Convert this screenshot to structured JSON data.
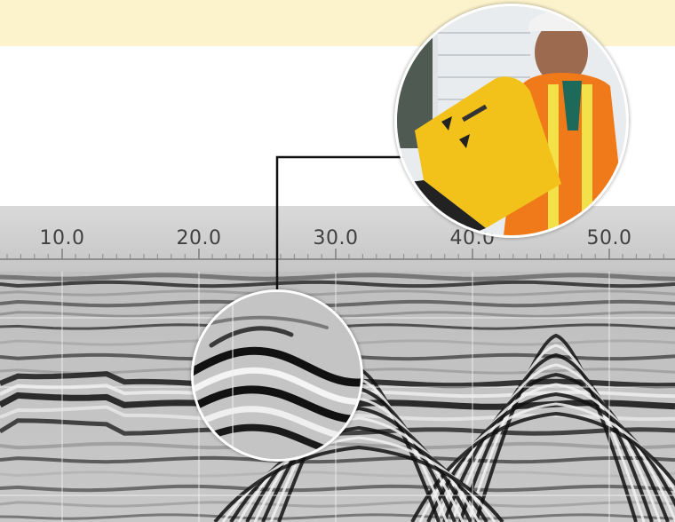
{
  "ruler": {
    "labels": [
      "10.0",
      "20.0",
      "30.0",
      "40.0",
      "50.0"
    ]
  },
  "icons": {
    "photo": "operator-with-yellow-gpr-unit-photo",
    "zoom": "magnified-radar-reflection"
  },
  "colors": {
    "band": "#fcf3cc",
    "ruler": "#cfcfcf",
    "device": "#f2c21a",
    "vest": "#f07a1a"
  }
}
